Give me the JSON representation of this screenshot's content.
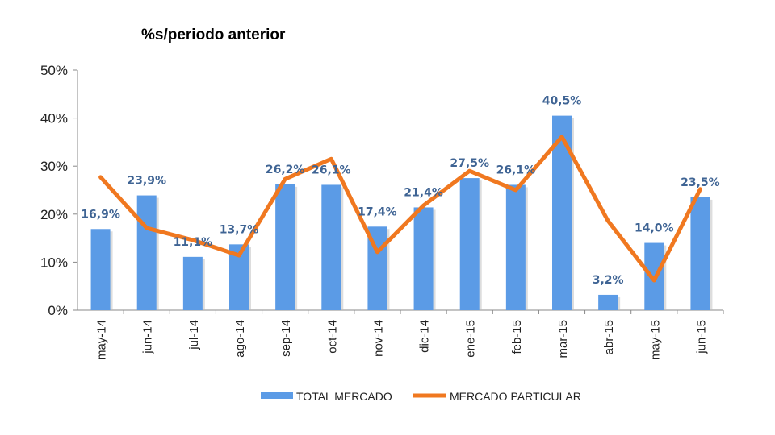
{
  "chart_data": {
    "type": "bar",
    "title": "%s/periodo anterior",
    "categories": [
      "may-14",
      "jun-14",
      "jul-14",
      "ago-14",
      "sep-14",
      "oct-14",
      "nov-14",
      "dic-14",
      "ene-15",
      "feb-15",
      "mar-15",
      "abr-15",
      "may-15",
      "jun-15"
    ],
    "series": [
      {
        "name": "TOTAL MERCADO",
        "type": "bar",
        "color": "#5B9BE6",
        "values": [
          16.9,
          23.9,
          11.1,
          13.7,
          26.2,
          26.1,
          17.4,
          21.4,
          27.5,
          26.1,
          40.5,
          3.2,
          14.0,
          23.5
        ],
        "labels": [
          "16,9%",
          "23,9%",
          "11,1%",
          "13,7%",
          "26,2%",
          "26,1%",
          "17,4%",
          "21,4%",
          "27,5%",
          "26,1%",
          "40,5%",
          "3,2%",
          "14,0%",
          "23,5%"
        ]
      },
      {
        "name": "MERCADO PARTICULAR",
        "type": "line",
        "color": "#F07820",
        "values": [
          27.7,
          17.1,
          14.6,
          11.4,
          27.3,
          31.5,
          12.1,
          21.8,
          29.0,
          25.0,
          36.1,
          18.6,
          6.2,
          25.2
        ]
      }
    ],
    "yticks": [
      "0%",
      "10%",
      "20%",
      "30%",
      "40%",
      "50%"
    ],
    "ylim": [
      0,
      50
    ],
    "grid": false,
    "legend": "bottom",
    "label_color": "#3F6494"
  }
}
